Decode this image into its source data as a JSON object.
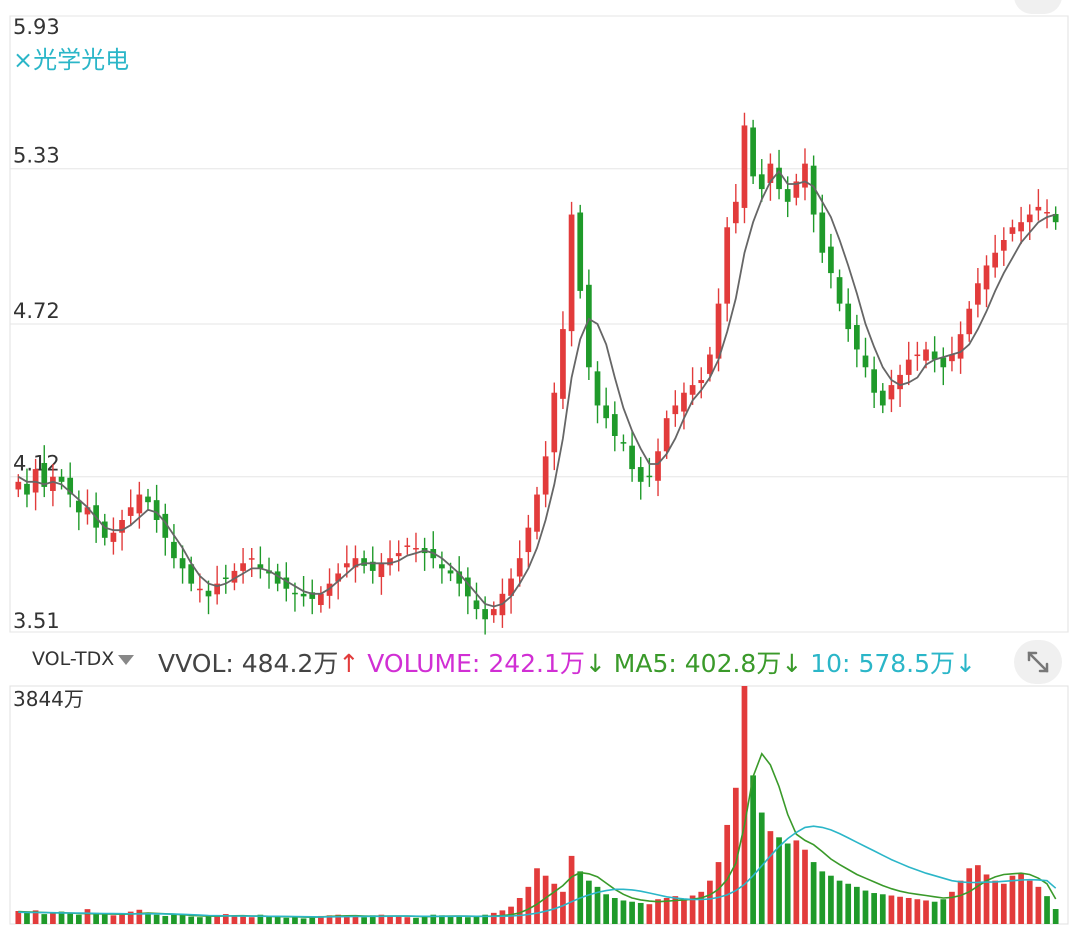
{
  "stock": {
    "label": "×光学光电"
  },
  "price_axis": {
    "labels": [
      "5.93",
      "5.33",
      "4.72",
      "4.12",
      "3.51"
    ],
    "max": 5.93,
    "min": 3.51
  },
  "volume_axis": {
    "label": "3844万",
    "max": 3844
  },
  "volume_header": {
    "indicator": "VOL-TDX",
    "vvol_label": "VVOL:",
    "vvol_value": "484.2万",
    "vvol_arrow": "↑",
    "volume_label": "VOLUME:",
    "volume_value": "242.1万",
    "volume_arrow": "↓",
    "ma5_label": "MA5:",
    "ma5_value": "402.8万",
    "ma5_arrow": "↓",
    "ma10_label": "10:",
    "ma10_value": "578.5万",
    "ma10_arrow": "↓"
  },
  "colors": {
    "up": "#e23b3b",
    "down": "#1f9a2a",
    "cyan": "#2bb6c8",
    "ma5": "#666666",
    "ma10": "#c8b020",
    "ma20": "#d12fd4",
    "ma60": "#3a9a2a",
    "grid": "#e6e6e6"
  },
  "icons": {
    "expand": "expand-arrows-icon",
    "dropdown": "caret-down-icon"
  },
  "chart_data": [
    {
      "type": "candlestick",
      "ylim": [
        3.51,
        5.93
      ],
      "series": [
        {
          "values": [
            4.1,
            4.05,
            4.15,
            4.08,
            4.12,
            4.1,
            4.05,
            3.98,
            4.0,
            3.92,
            3.88,
            3.9,
            3.95,
            4.0,
            4.05,
            4.02,
            3.95,
            3.88,
            3.8,
            3.76,
            3.7,
            3.68,
            3.65,
            3.7,
            3.72,
            3.75,
            3.78,
            3.8,
            3.76,
            3.74,
            3.7,
            3.68,
            3.66,
            3.65,
            3.64,
            3.66,
            3.7,
            3.74,
            3.78,
            3.8,
            3.77,
            3.75,
            3.78,
            3.8,
            3.82,
            3.85,
            3.84,
            3.82,
            3.8,
            3.76,
            3.74,
            3.7,
            3.65,
            3.6,
            3.56,
            3.6,
            3.66,
            3.72,
            3.8,
            3.92,
            4.05,
            4.2,
            4.45,
            4.7,
            5.15,
            4.85,
            4.55,
            4.4,
            4.35,
            4.28,
            4.25,
            4.15,
            4.1,
            4.12,
            4.22,
            4.35,
            4.4,
            4.45,
            4.48,
            4.5,
            4.6,
            4.8,
            5.1,
            5.2,
            5.5,
            5.3,
            5.25,
            5.35,
            5.25,
            5.2,
            5.28,
            5.35,
            5.15,
            5.0,
            4.92,
            4.8,
            4.7,
            4.62,
            4.55,
            4.45,
            4.4,
            4.48,
            4.52,
            4.58,
            4.6,
            4.62,
            4.58,
            4.55,
            4.6,
            4.68,
            4.78,
            4.88,
            4.95,
            5.0,
            5.05,
            5.1,
            5.12,
            5.15,
            5.18,
            5.16,
            5.12
          ]
        },
        {
          "name": "MA5",
          "values": [
            4.12,
            4.1,
            4.1,
            4.09,
            4.1,
            4.09,
            4.06,
            4.03,
            4.0,
            3.96,
            3.92,
            3.91,
            3.91,
            3.93,
            3.96,
            3.99,
            3.98,
            3.94,
            3.89,
            3.84,
            3.78,
            3.73,
            3.7,
            3.69,
            3.7,
            3.72,
            3.74,
            3.76,
            3.76,
            3.75,
            3.73,
            3.71,
            3.69,
            3.67,
            3.66,
            3.66,
            3.68,
            3.71,
            3.74,
            3.77,
            3.78,
            3.78,
            3.78,
            3.78,
            3.79,
            3.81,
            3.82,
            3.83,
            3.82,
            3.8,
            3.77,
            3.74,
            3.7,
            3.66,
            3.62,
            3.61,
            3.62,
            3.65,
            3.7,
            3.76,
            3.84,
            3.95,
            4.09,
            4.27,
            4.51,
            4.66,
            4.74,
            4.72,
            4.64,
            4.51,
            4.39,
            4.3,
            4.23,
            4.17,
            4.17,
            4.21,
            4.27,
            4.35,
            4.42,
            4.46,
            4.51,
            4.58,
            4.69,
            4.82,
            5.0,
            5.12,
            5.21,
            5.28,
            5.32,
            5.27,
            5.27,
            5.28,
            5.26,
            5.2,
            5.14,
            5.05,
            4.95,
            4.84,
            4.72,
            4.63,
            4.55,
            4.5,
            4.48,
            4.49,
            4.51,
            4.56,
            4.58,
            4.59,
            4.6,
            4.61,
            4.64,
            4.7,
            4.77,
            4.85,
            4.92,
            4.98,
            5.04,
            5.08,
            5.12,
            5.14,
            5.15
          ]
        }
      ]
    },
    {
      "type": "bar",
      "ylim": [
        0,
        3844
      ],
      "series": [
        {
          "name": "VOLUME",
          "values": [
            210,
            180,
            220,
            160,
            190,
            200,
            170,
            150,
            240,
            180,
            160,
            140,
            170,
            200,
            230,
            180,
            150,
            130,
            160,
            150,
            120,
            110,
            140,
            130,
            160,
            140,
            120,
            110,
            150,
            130,
            120,
            100,
            110,
            90,
            120,
            130,
            140,
            150,
            130,
            120,
            110,
            140,
            150,
            130,
            120,
            110,
            100,
            120,
            150,
            140,
            130,
            120,
            110,
            130,
            150,
            180,
            220,
            280,
            420,
            600,
            900,
            780,
            650,
            520,
            1100,
            850,
            700,
            600,
            480,
            420,
            380,
            360,
            340,
            320,
            400,
            420,
            450,
            380,
            460,
            520,
            700,
            1000,
            1600,
            2200,
            3844,
            2400,
            1800,
            1500,
            1400,
            1300,
            1350,
            1200,
            1000,
            850,
            780,
            700,
            650,
            600,
            540,
            500,
            480,
            460,
            440,
            420,
            400,
            380,
            360,
            400,
            520,
            700,
            900,
            950,
            800,
            700,
            650,
            780,
            820,
            700,
            600,
            450,
            242
          ]
        },
        {
          "name": "MA5",
          "values": [
            200,
            195,
            190,
            185,
            180,
            182,
            178,
            172,
            168,
            165,
            162,
            160,
            158,
            160,
            170,
            176,
            172,
            165,
            158,
            150,
            140,
            132,
            128,
            126,
            130,
            132,
            134,
            130,
            128,
            124,
            120,
            118,
            116,
            112,
            110,
            114,
            122,
            128,
            132,
            134,
            130,
            126,
            128,
            130,
            130,
            128,
            124,
            120,
            122,
            126,
            128,
            128,
            126,
            124,
            126,
            130,
            138,
            150,
            180,
            240,
            320,
            420,
            520,
            620,
            760,
            830,
            810,
            760,
            660,
            560,
            480,
            420,
            390,
            370,
            360,
            368,
            380,
            390,
            400,
            420,
            470,
            560,
            720,
            980,
            1600,
            2380,
            2750,
            2570,
            2220,
            1770,
            1450,
            1350,
            1280,
            1170,
            1050,
            960,
            880,
            800,
            740,
            680,
            620,
            570,
            530,
            500,
            480,
            460,
            440,
            420,
            430,
            460,
            520,
            610,
            700,
            760,
            800,
            810,
            820,
            800,
            740,
            650,
            403
          ]
        },
        {
          "name": "10",
          "values": [
            190,
            188,
            186,
            184,
            182,
            180,
            178,
            176,
            174,
            172,
            170,
            168,
            166,
            164,
            163,
            164,
            165,
            163,
            160,
            156,
            150,
            144,
            138,
            134,
            132,
            130,
            128,
            127,
            126,
            125,
            124,
            122,
            120,
            118,
            116,
            115,
            116,
            118,
            120,
            122,
            123,
            124,
            125,
            126,
            127,
            127,
            126,
            125,
            124,
            124,
            125,
            126,
            126,
            125,
            124,
            124,
            126,
            130,
            138,
            154,
            176,
            206,
            246,
            296,
            360,
            420,
            470,
            510,
            540,
            560,
            560,
            550,
            530,
            500,
            470,
            440,
            420,
            405,
            395,
            395,
            405,
            430,
            470,
            540,
            640,
            780,
            940,
            1100,
            1250,
            1380,
            1480,
            1560,
            1580,
            1560,
            1520,
            1460,
            1390,
            1320,
            1250,
            1180,
            1110,
            1040,
            980,
            920,
            870,
            820,
            780,
            740,
            700,
            680,
            670,
            672,
            676,
            680,
            690,
            700,
            710,
            715,
            712,
            700,
            579
          ]
        }
      ]
    }
  ]
}
